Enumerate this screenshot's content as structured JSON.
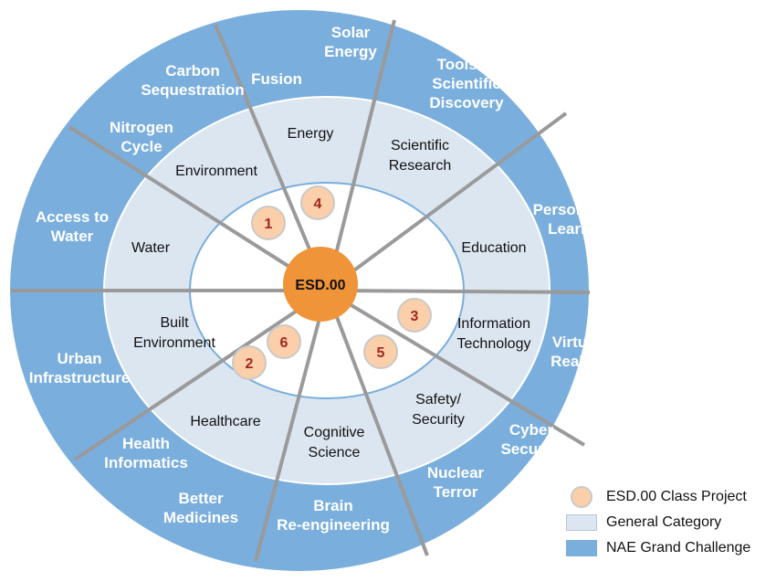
{
  "colors": {
    "outer_ring": "#7aaedc",
    "middle_ring": "#dce6f1",
    "inner_disk": "#ffffff",
    "hub": "#f0943a",
    "project_circle": "#fbcfa9",
    "divider": "#9a9a9a"
  },
  "hub": {
    "label": "ESD.00"
  },
  "nae_grand_challenges": [
    {
      "lines": [
        "Solar",
        "Energy"
      ]
    },
    {
      "lines": [
        "Fusion"
      ]
    },
    {
      "lines": [
        "Tools of",
        "Scientific",
        "Discovery"
      ]
    },
    {
      "lines": [
        "Carbon",
        "Sequestration"
      ]
    },
    {
      "lines": [
        "Nitrogen",
        "Cycle"
      ]
    },
    {
      "lines": [
        "Personalized",
        "Learning"
      ]
    },
    {
      "lines": [
        "Access to",
        "Water"
      ]
    },
    {
      "lines": [
        "Virtual",
        "Reality"
      ]
    },
    {
      "lines": [
        "Urban",
        "Infrastructure"
      ]
    },
    {
      "lines": [
        "Cyber",
        "Security"
      ]
    },
    {
      "lines": [
        "Health",
        "Informatics"
      ]
    },
    {
      "lines": [
        "Nuclear",
        "Terror"
      ]
    },
    {
      "lines": [
        "Better",
        "Medicines"
      ]
    },
    {
      "lines": [
        "Brain",
        "Re-engineering"
      ]
    }
  ],
  "general_categories": [
    {
      "lines": [
        "Energy"
      ]
    },
    {
      "lines": [
        "Scientific",
        "Research"
      ]
    },
    {
      "lines": [
        "Environment"
      ]
    },
    {
      "lines": [
        "Water"
      ]
    },
    {
      "lines": [
        "Education"
      ]
    },
    {
      "lines": [
        "Built",
        "Environment"
      ]
    },
    {
      "lines": [
        "Information",
        "Technology"
      ]
    },
    {
      "lines": [
        "Healthcare"
      ]
    },
    {
      "lines": [
        "Safety/",
        "Security"
      ]
    },
    {
      "lines": [
        "Cognitive",
        "Science"
      ]
    }
  ],
  "class_projects": [
    "1",
    "4",
    "3",
    "6",
    "2",
    "5"
  ],
  "legend": [
    {
      "label": "ESD.00 Class Project",
      "swatch": "project_circle"
    },
    {
      "label": "General Category",
      "swatch": "middle_ring"
    },
    {
      "label": "NAE Grand Challenge",
      "swatch": "outer_ring"
    }
  ]
}
